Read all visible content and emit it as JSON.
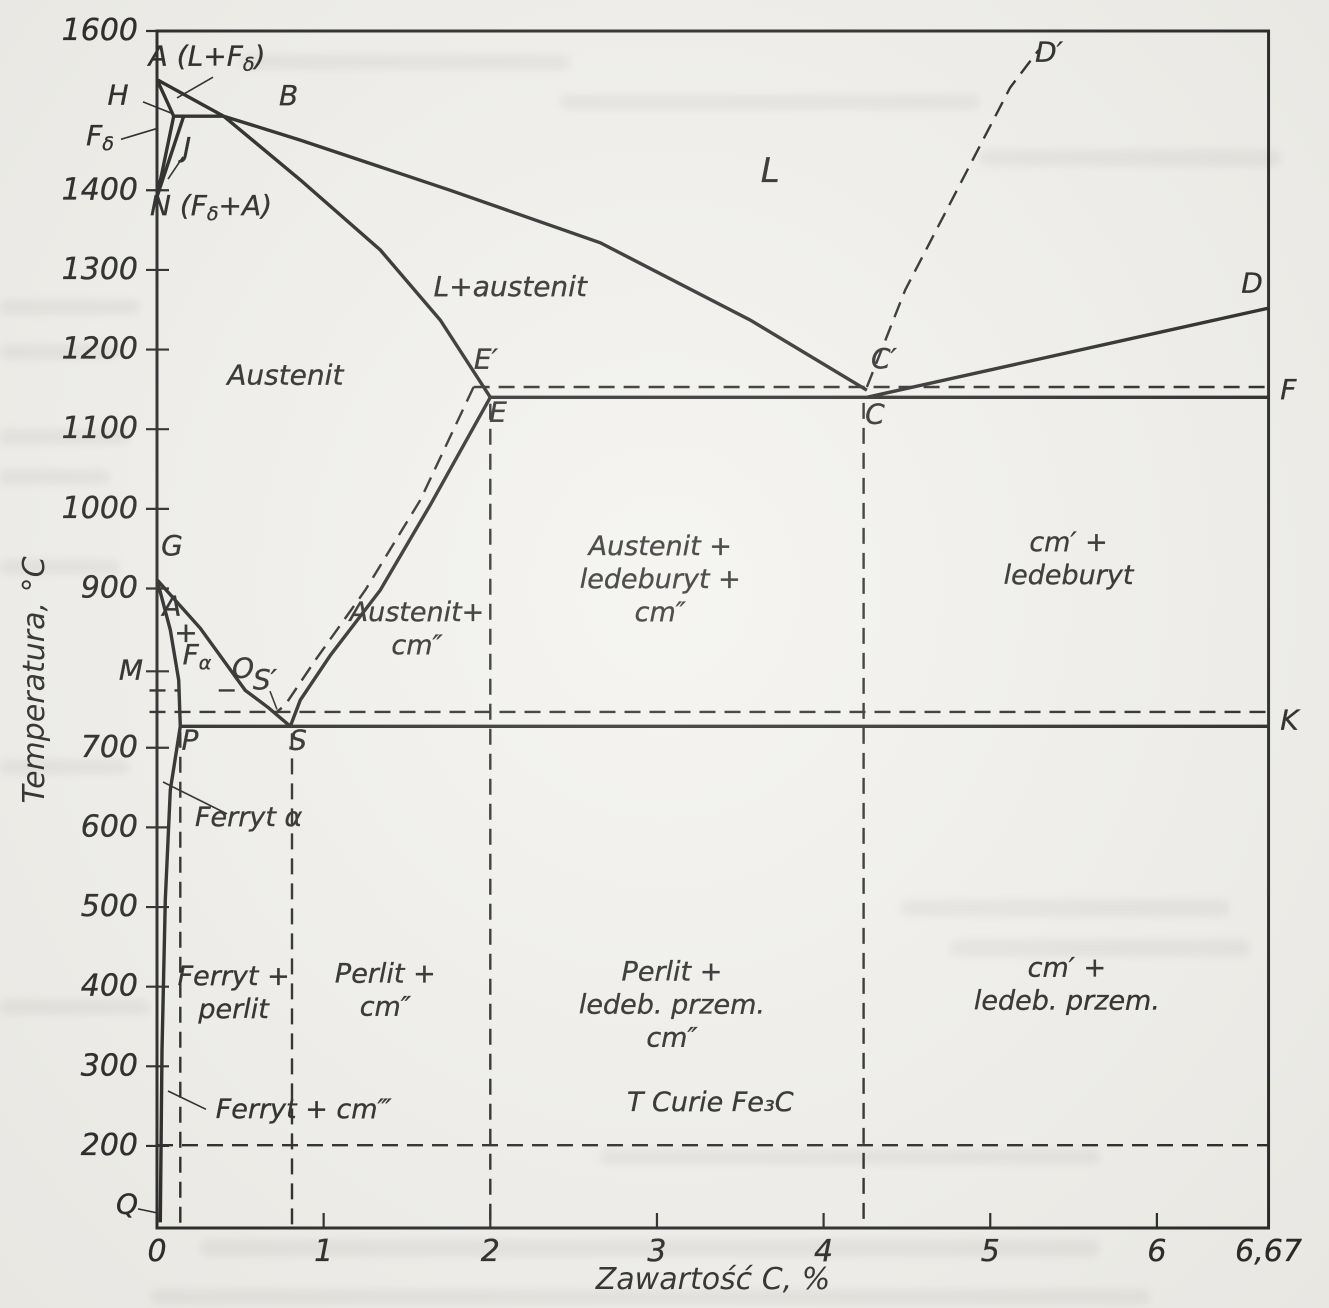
{
  "axes": {
    "x": {
      "title": "Zawartość C, %",
      "min": 0,
      "max": 6.67,
      "ticks": [
        {
          "v": 0,
          "label": "0"
        },
        {
          "v": 1,
          "label": "1"
        },
        {
          "v": 2,
          "label": "2"
        },
        {
          "v": 3,
          "label": "3"
        },
        {
          "v": 4,
          "label": "4"
        },
        {
          "v": 5,
          "label": "5"
        },
        {
          "v": 6,
          "label": "6"
        },
        {
          "v": 6.67,
          "label": "6,67"
        }
      ]
    },
    "y": {
      "title": "Temperatura, °C",
      "min": 97,
      "max": 1600,
      "ticks": [
        {
          "v": 1600,
          "label": "1600"
        },
        {
          "v": 1400,
          "label": "1400"
        },
        {
          "v": 1300,
          "label": "1300"
        },
        {
          "v": 1200,
          "label": "1200"
        },
        {
          "v": 1100,
          "label": "1100"
        },
        {
          "v": 1000,
          "label": "1000"
        },
        {
          "v": 900,
          "label": "900"
        },
        {
          "v": 700,
          "label": "700"
        },
        {
          "v": 600,
          "label": "600"
        },
        {
          "v": 500,
          "label": "500"
        },
        {
          "v": 400,
          "label": "400"
        },
        {
          "v": 300,
          "label": "300"
        },
        {
          "v": 200,
          "label": "200"
        }
      ],
      "extra_tick_values": [
        796
      ]
    }
  },
  "chart_data": {
    "type": "phase-diagram",
    "title": "",
    "x_unit": "% C",
    "y_unit": "°C",
    "lines": [
      {
        "name": "liquidus-A-B",
        "style": "solid",
        "points": [
          [
            0,
            1539
          ],
          [
            0.4,
            1493
          ]
        ]
      },
      {
        "name": "solidus-A-H",
        "style": "solid",
        "points": [
          [
            0,
            1539
          ],
          [
            0.1,
            1493
          ]
        ]
      },
      {
        "name": "peritectic-H-B",
        "style": "solid",
        "points": [
          [
            0.1,
            1493
          ],
          [
            0.4,
            1493
          ]
        ]
      },
      {
        "name": "delta-solvus-H-N",
        "style": "solid",
        "points": [
          [
            0.1,
            1493
          ],
          [
            0,
            1392
          ]
        ]
      },
      {
        "name": "delta-solvus-J-N",
        "style": "solid",
        "points": [
          [
            0.16,
            1493
          ],
          [
            0,
            1392
          ]
        ]
      },
      {
        "name": "liquidus-B-C",
        "style": "solid",
        "points": [
          [
            0.4,
            1493
          ],
          [
            0.86,
            1463
          ],
          [
            1.76,
            1400
          ],
          [
            2.66,
            1334
          ],
          [
            3.56,
            1237
          ],
          [
            4.26,
            1149
          ]
        ]
      },
      {
        "name": "solidus-B-E",
        "style": "solid",
        "points": [
          [
            0.4,
            1493
          ],
          [
            0.86,
            1413
          ],
          [
            1.34,
            1325
          ],
          [
            1.7,
            1237
          ],
          [
            2.0,
            1140
          ]
        ]
      },
      {
        "name": "liquidus-C-D",
        "style": "solid",
        "points": [
          [
            4.26,
            1140
          ],
          [
            6.67,
            1252
          ]
        ]
      },
      {
        "name": "eutectic-E-C-F",
        "style": "solid",
        "points": [
          [
            2.0,
            1140
          ],
          [
            6.67,
            1140
          ]
        ]
      },
      {
        "name": "acm-E-S",
        "style": "solid",
        "points": [
          [
            2.0,
            1140
          ],
          [
            1.64,
            1005
          ],
          [
            1.34,
            898
          ],
          [
            1.04,
            816
          ],
          [
            0.86,
            760
          ],
          [
            0.8,
            727
          ]
        ]
      },
      {
        "name": "a3-G-S",
        "style": "solid",
        "points": [
          [
            0,
            911
          ],
          [
            0.26,
            850
          ],
          [
            0.53,
            772
          ],
          [
            0.67,
            750
          ],
          [
            0.8,
            727
          ]
        ]
      },
      {
        "name": "a3-G-P",
        "style": "solid",
        "points": [
          [
            0,
            911
          ],
          [
            0.08,
            848
          ],
          [
            0.13,
            785
          ],
          [
            0.14,
            727
          ]
        ]
      },
      {
        "name": "eutectoid-P-S-K",
        "style": "solid",
        "points": [
          [
            0.14,
            727
          ],
          [
            6.67,
            727
          ]
        ]
      },
      {
        "name": "ferrite-solvus-P-Q",
        "style": "solid",
        "points": [
          [
            0.14,
            727
          ],
          [
            0.08,
            647
          ],
          [
            0.05,
            509
          ],
          [
            0.03,
            320
          ],
          [
            0.02,
            104
          ]
        ]
      },
      {
        "name": "stable-eutectic-E1-C1-F1",
        "style": "dashed",
        "points": [
          [
            1.9,
            1153
          ],
          [
            6.67,
            1153
          ]
        ]
      },
      {
        "name": "stable-acm-E1-S1",
        "style": "dashed",
        "points": [
          [
            1.9,
            1153
          ],
          [
            1.58,
            1011
          ],
          [
            1.25,
            898
          ],
          [
            0.95,
            810
          ],
          [
            0.77,
            754
          ],
          [
            0.72,
            745
          ]
        ]
      },
      {
        "name": "stable-eutectoid-line",
        "style": "dashed",
        "points": [
          [
            -0.045,
            745
          ],
          [
            6.67,
            745
          ]
        ]
      },
      {
        "name": "graphite-liquidus-C1-D1",
        "style": "dashed",
        "points": [
          [
            4.26,
            1153
          ],
          [
            4.49,
            1275
          ],
          [
            5.12,
            1529
          ],
          [
            5.29,
            1576
          ]
        ]
      },
      {
        "name": "curie-ferrite-M-O-left",
        "style": "dashed",
        "points": [
          [
            -0.045,
            772
          ],
          [
            0.126,
            772
          ]
        ]
      },
      {
        "name": "curie-ferrite-M-O-right",
        "style": "dashed",
        "points": [
          [
            0.37,
            772
          ],
          [
            0.53,
            772
          ]
        ]
      },
      {
        "name": "curie-cementite-line",
        "style": "dashed",
        "points": [
          [
            0,
            201
          ],
          [
            6.67,
            201
          ]
        ]
      },
      {
        "name": "guide-vertical-P",
        "style": "dashed",
        "points": [
          [
            0.14,
            720
          ],
          [
            0.14,
            97
          ]
        ]
      },
      {
        "name": "guide-vertical-S",
        "style": "dashed",
        "points": [
          [
            0.81,
            718
          ],
          [
            0.81,
            97
          ]
        ]
      },
      {
        "name": "guide-vertical-E",
        "style": "dashed",
        "points": [
          [
            2.0,
            1132
          ],
          [
            2.0,
            97
          ]
        ]
      },
      {
        "name": "guide-vertical-C",
        "style": "dashed",
        "points": [
          [
            4.24,
            1133
          ],
          [
            4.24,
            97
          ]
        ]
      }
    ],
    "leader_lines": [
      {
        "name": "leader-A-region",
        "points": [
          [
            0.336,
            1542
          ],
          [
            0.12,
            1516
          ]
        ]
      },
      {
        "name": "leader-H",
        "points": [
          [
            -0.084,
            1511
          ],
          [
            0.084,
            1497
          ]
        ]
      },
      {
        "name": "leader-F-delta",
        "points": [
          [
            -0.216,
            1464
          ],
          [
            0.006,
            1478
          ]
        ]
      },
      {
        "name": "leader-J",
        "points": [
          [
            0.156,
            1442
          ],
          [
            0.066,
            1414
          ]
        ]
      },
      {
        "name": "leader-S-prime",
        "points": [
          [
            0.678,
            771
          ],
          [
            0.72,
            748
          ]
        ]
      },
      {
        "name": "leader-Q",
        "points": [
          [
            -0.114,
            121
          ],
          [
            0,
            116
          ]
        ]
      },
      {
        "name": "leader-ferryt-alpha",
        "points": [
          [
            0.036,
            657
          ],
          [
            0.42,
            617
          ]
        ]
      },
      {
        "name": "leader-ferryt-cm3",
        "points": [
          [
            0.066,
            269
          ],
          [
            0.294,
            246
          ]
        ]
      }
    ],
    "region_labels": [
      {
        "name": "region-L",
        "lines": [
          "L"
        ],
        "C": 3.68,
        "T": 1423,
        "size": 34
      },
      {
        "name": "region-L-austenit",
        "lines": [
          "L+austenit"
        ],
        "C": 2.12,
        "T": 1277,
        "size": 28
      },
      {
        "name": "region-austenit",
        "lines": [
          "Austenit"
        ],
        "C": 0.77,
        "T": 1166,
        "size": 28
      },
      {
        "name": "region-austenit-cm2",
        "lines": [
          "Austenit+",
          "cm″"
        ],
        "C": 1.56,
        "T": 869,
        "size": 27
      },
      {
        "name": "region-austenit-ledeburyt-cm2",
        "lines": [
          "Austenit +",
          "ledeburyt +",
          "cm″"
        ],
        "C": 3.02,
        "T": 952,
        "size": 27
      },
      {
        "name": "region-cm1-ledeburyt",
        "lines": [
          "cm′ +",
          "ledeburyt"
        ],
        "C": 5.47,
        "T": 957,
        "size": 27
      },
      {
        "name": "region-ferryt-alpha",
        "lines": [
          "Ferryt α"
        ],
        "C": 0.55,
        "T": 612,
        "size": 27
      },
      {
        "name": "region-ferryt-perlit",
        "lines": [
          "Ferryt +",
          "perlit"
        ],
        "C": 0.46,
        "T": 412,
        "size": 27
      },
      {
        "name": "region-perlit-cm2",
        "lines": [
          "Perlit +",
          "cm″"
        ],
        "C": 1.37,
        "T": 415,
        "size": 27
      },
      {
        "name": "region-perlit-ledeb-przem-cm2",
        "lines": [
          "Perlit +",
          "ledeb. przem.",
          "cm″"
        ],
        "C": 3.09,
        "T": 418,
        "size": 27
      },
      {
        "name": "region-cm1-ledeb-przem",
        "lines": [
          "cm′ +",
          "ledeb. przem."
        ],
        "C": 5.46,
        "T": 423,
        "size": 27
      },
      {
        "name": "region-ferryt-cm3",
        "lines": [
          "Ferryt + cm‴"
        ],
        "C": 0.88,
        "T": 245,
        "size": 27
      },
      {
        "name": "label-t-curie-fe3c",
        "lines": [
          "T Curie  Fe₃C"
        ],
        "C": 3.32,
        "T": 254,
        "size": 27
      }
    ],
    "point_labels": [
      {
        "text": "A (L+F_{δ})",
        "C": -0.05,
        "T": 1567,
        "anchor": "start",
        "name": "point-A"
      },
      {
        "text": "H",
        "C": -0.234,
        "T": 1518,
        "name": "point-H"
      },
      {
        "text": "B",
        "C": 0.79,
        "T": 1517,
        "name": "point-B"
      },
      {
        "text": "F_{δ}",
        "C": -0.342,
        "T": 1467,
        "name": "label-F-delta"
      },
      {
        "text": "J",
        "C": 0.18,
        "T": 1452,
        "name": "point-J"
      },
      {
        "text": "N (F_{δ}+A)",
        "C": -0.042,
        "T": 1379,
        "anchor": "start",
        "name": "point-N"
      },
      {
        "text": "G",
        "C": 0.09,
        "T": 952,
        "name": "point-G"
      },
      {
        "text": "M",
        "C": -0.156,
        "T": 796,
        "name": "point-M"
      },
      {
        "text": "A",
        "C": 0.09,
        "T": 876,
        "name": "region-A-plus-Falpha-1"
      },
      {
        "text": "+",
        "C": 0.174,
        "T": 843,
        "name": "region-A-plus-Falpha-2"
      },
      {
        "text": "F_{α}",
        "C": 0.24,
        "T": 815,
        "name": "region-A-plus-Falpha-3"
      },
      {
        "text": "O",
        "C": 0.516,
        "T": 798,
        "name": "point-O"
      },
      {
        "text": "S′",
        "C": 0.648,
        "T": 784,
        "name": "point-S-prime"
      },
      {
        "text": "E′",
        "C": 1.974,
        "T": 1186,
        "name": "point-E-prime"
      },
      {
        "text": "E",
        "C": 2.046,
        "T": 1120,
        "name": "point-E"
      },
      {
        "text": "C′",
        "C": 4.362,
        "T": 1187,
        "name": "point-C-prime"
      },
      {
        "text": "C",
        "C": 4.308,
        "T": 1117,
        "name": "point-C"
      },
      {
        "text": "D′",
        "C": 5.353,
        "T": 1572,
        "name": "point-D-prime"
      },
      {
        "text": "D",
        "C": 6.571,
        "T": 1282,
        "name": "point-D"
      },
      {
        "text": "F",
        "C": 6.74,
        "T": 1148,
        "anchor": "start",
        "name": "point-F"
      },
      {
        "text": "K",
        "C": 6.74,
        "T": 733,
        "anchor": "start",
        "name": "point-K"
      },
      {
        "text": "P",
        "C": 0.198,
        "T": 708,
        "name": "point-P"
      },
      {
        "text": "S",
        "C": 0.846,
        "T": 708,
        "name": "point-S"
      },
      {
        "text": "Q",
        "C": -0.18,
        "T": 125,
        "name": "point-Q"
      }
    ]
  }
}
